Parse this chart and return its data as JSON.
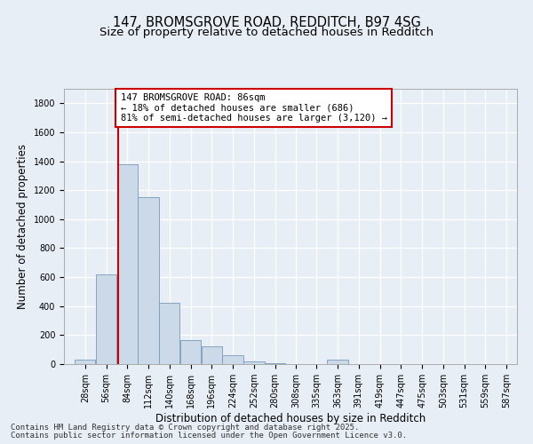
{
  "title": "147, BROMSGROVE ROAD, REDDITCH, B97 4SG",
  "subtitle": "Size of property relative to detached houses in Redditch",
  "xlabel": "Distribution of detached houses by size in Redditch",
  "ylabel": "Number of detached properties",
  "bar_color": "#ccd9e8",
  "bar_edge_color": "#7799bb",
  "bins": [
    "28sqm",
    "56sqm",
    "84sqm",
    "112sqm",
    "140sqm",
    "168sqm",
    "196sqm",
    "224sqm",
    "252sqm",
    "280sqm",
    "308sqm",
    "335sqm",
    "363sqm",
    "391sqm",
    "419sqm",
    "447sqm",
    "475sqm",
    "503sqm",
    "531sqm",
    "559sqm",
    "587sqm"
  ],
  "bin_edges": [
    28,
    56,
    84,
    112,
    140,
    168,
    196,
    224,
    252,
    280,
    308,
    335,
    363,
    391,
    419,
    447,
    475,
    503,
    531,
    559,
    587
  ],
  "bin_width": 28,
  "values": [
    30,
    620,
    1380,
    1150,
    420,
    165,
    120,
    60,
    20,
    5,
    0,
    0,
    30,
    0,
    0,
    0,
    0,
    0,
    0,
    0,
    0
  ],
  "property_size": 86,
  "property_label": "147 BROMSGROVE ROAD: 86sqm",
  "pct_smaller": "18% of detached houses are smaller (686)",
  "pct_larger": "81% of semi-detached houses are larger (3,120)",
  "vline_color": "#cc0000",
  "annotation_box_color": "#cc0000",
  "ylim": [
    0,
    1900
  ],
  "yticks": [
    0,
    200,
    400,
    600,
    800,
    1000,
    1200,
    1400,
    1600,
    1800
  ],
  "xlim_left": 14,
  "xlim_right": 615,
  "background_color": "#e8eef5",
  "plot_bg_color": "#e8eef5",
  "footer_line1": "Contains HM Land Registry data © Crown copyright and database right 2025.",
  "footer_line2": "Contains public sector information licensed under the Open Government Licence v3.0.",
  "title_fontsize": 10.5,
  "subtitle_fontsize": 9.5,
  "axis_label_fontsize": 8.5,
  "tick_fontsize": 7,
  "annotation_fontsize": 7.5,
  "footer_fontsize": 6.5
}
